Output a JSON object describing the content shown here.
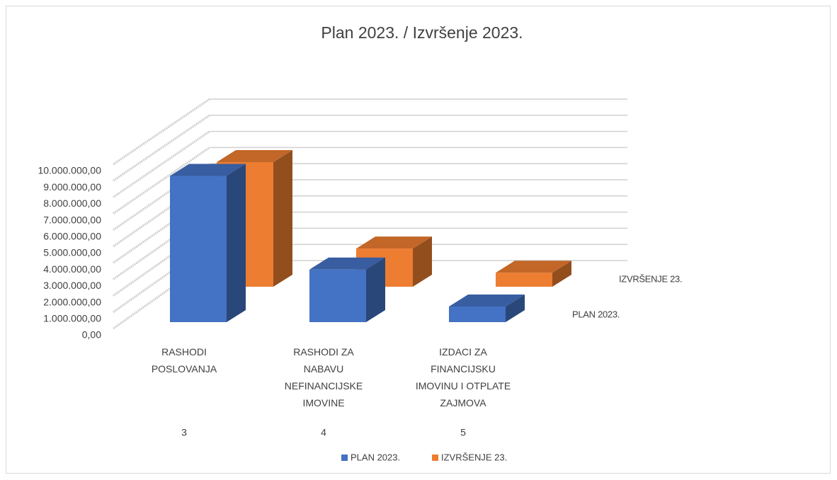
{
  "chart_data": {
    "type": "bar3d",
    "title": "Plan 2023. / Izvršenje 2023.",
    "categories": [
      "RASHODI POSLOVANJA",
      "RASHODI ZA NABAVU NEFINANCIJSKE IMOVINE",
      "IZDACI ZA FINANCIJSKU IMOVINU I OTPLATE ZAJMOVA"
    ],
    "category_codes": [
      "3",
      "4",
      "5"
    ],
    "series": [
      {
        "name": "PLAN 2023.",
        "color": "#4472c4",
        "values": [
          8900000,
          3200000,
          950000
        ]
      },
      {
        "name": "IZVRŠENJE 23.",
        "color": "#ed7d31",
        "values": [
          8000000,
          2450000,
          900000
        ]
      }
    ],
    "ylim": [
      0,
      10000000
    ],
    "yticks": [
      {
        "value": 0,
        "label": "0,00"
      },
      {
        "value": 1000000,
        "label": "1.000.000,00"
      },
      {
        "value": 2000000,
        "label": "2.000.000,00"
      },
      {
        "value": 3000000,
        "label": "3.000.000,00"
      },
      {
        "value": 4000000,
        "label": "4.000.000,00"
      },
      {
        "value": 5000000,
        "label": "5.000.000,00"
      },
      {
        "value": 6000000,
        "label": "6.000.000,00"
      },
      {
        "value": 7000000,
        "label": "7.000.000,00"
      },
      {
        "value": 8000000,
        "label": "8.000.000,00"
      },
      {
        "value": 9000000,
        "label": "9.000.000,00"
      },
      {
        "value": 10000000,
        "label": "10.000.000,00"
      }
    ],
    "grid": true,
    "legend": "bottom"
  }
}
